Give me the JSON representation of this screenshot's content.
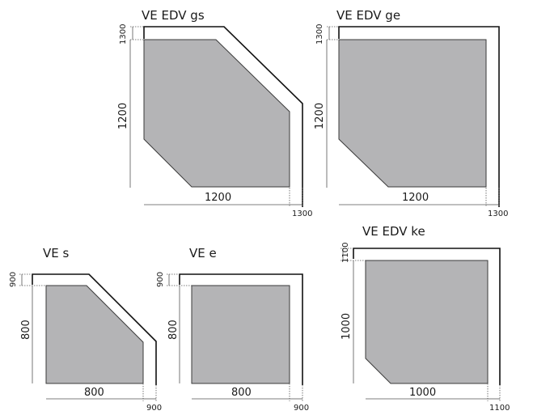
{
  "diagrams": [
    {
      "title": "VE EDV gs",
      "inner_width": "1200",
      "inner_height": "1200",
      "outer_width": "1300",
      "outer_height": "1300"
    },
    {
      "title": "VE EDV ge",
      "inner_width": "1200",
      "inner_height": "1200",
      "outer_width": "1300",
      "outer_height": "1300"
    },
    {
      "title": "VE s",
      "inner_width": "800",
      "inner_height": "800",
      "outer_width": "900",
      "outer_height": "900"
    },
    {
      "title": "VE e",
      "inner_width": "800",
      "inner_height": "800",
      "outer_width": "900",
      "outer_height": "900"
    },
    {
      "title": "VE EDV ke",
      "inner_width": "1000",
      "inner_height": "1000",
      "outer_width": "1100",
      "outer_height": "1100"
    }
  ]
}
